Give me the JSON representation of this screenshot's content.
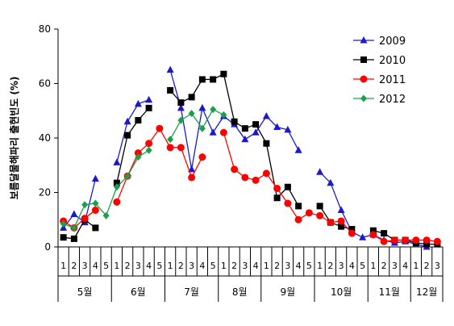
{
  "chart_data": {
    "type": "line",
    "ylabel": "보름달물해파리 출현빈도 (%)",
    "ylim": [
      0,
      80
    ],
    "yticks": [
      0,
      20,
      40,
      60,
      80
    ],
    "grid": false,
    "legend_position": "top-right",
    "x_slots": [
      "1",
      "2",
      "3",
      "4",
      "5",
      "1",
      "2",
      "3",
      "4",
      "5",
      "1",
      "2",
      "3",
      "4",
      "5",
      "1",
      "2",
      "3",
      "4",
      "1",
      "2",
      "3",
      "4",
      "5",
      "1",
      "2",
      "3",
      "4",
      "5",
      "1",
      "2",
      "3",
      "4",
      "1",
      "2",
      "3"
    ],
    "months": [
      {
        "label": "5월",
        "start": 0,
        "count": 5
      },
      {
        "label": "6월",
        "start": 5,
        "count": 5
      },
      {
        "label": "7월",
        "start": 10,
        "count": 5
      },
      {
        "label": "8월",
        "start": 15,
        "count": 4
      },
      {
        "label": "9월",
        "start": 19,
        "count": 5
      },
      {
        "label": "10월",
        "start": 24,
        "count": 5
      },
      {
        "label": "11월",
        "start": 29,
        "count": 4
      },
      {
        "label": "12월",
        "start": 33,
        "count": 3
      }
    ],
    "series": [
      {
        "name": "2009",
        "color": "#1a1acc",
        "marker": "triangle",
        "values": [
          7,
          12,
          9,
          25,
          null,
          31,
          46,
          52.5,
          54,
          null,
          65,
          51,
          28.5,
          51,
          42,
          48,
          45,
          39.5,
          42,
          48,
          44,
          43,
          35.5,
          null,
          27.5,
          23.5,
          13.5,
          5.5,
          3.5,
          4.5,
          2.5,
          1.5,
          2,
          1,
          0,
          null
        ]
      },
      {
        "name": "2010",
        "color": "#000000",
        "marker": "square",
        "values": [
          3.5,
          3,
          10,
          7,
          null,
          23.5,
          41,
          46.5,
          51,
          null,
          57.5,
          53,
          55,
          61.5,
          61.5,
          63.5,
          46,
          43.5,
          45,
          38,
          18,
          22,
          15,
          null,
          15,
          9,
          7.5,
          6.5,
          null,
          6,
          5,
          2.5,
          2.5,
          1.5,
          1,
          1
        ]
      },
      {
        "name": "2011",
        "color": "#ff0000",
        "marker": "circle",
        "values": [
          9.5,
          7,
          10.5,
          13.5,
          null,
          16.5,
          26,
          34.5,
          38,
          43.5,
          36.5,
          36.5,
          25.5,
          33,
          null,
          42,
          28.5,
          25.5,
          24.5,
          27,
          21.5,
          16,
          10,
          12.5,
          11.5,
          9,
          9.5,
          5,
          null,
          4.5,
          2,
          2.5,
          2.5,
          2.5,
          2.5,
          2
        ]
      },
      {
        "name": "2012",
        "color": "#1aa04a",
        "marker": "diamond",
        "values": [
          8.5,
          7,
          15.5,
          16,
          11.5,
          22,
          26,
          33,
          35.5,
          null,
          39.5,
          46.5,
          49,
          43.5,
          50.5,
          48.5,
          null,
          null,
          null,
          null,
          null,
          null,
          null,
          null,
          null,
          null,
          null,
          null,
          null,
          null,
          null,
          null,
          null,
          null,
          null,
          null
        ]
      }
    ]
  }
}
